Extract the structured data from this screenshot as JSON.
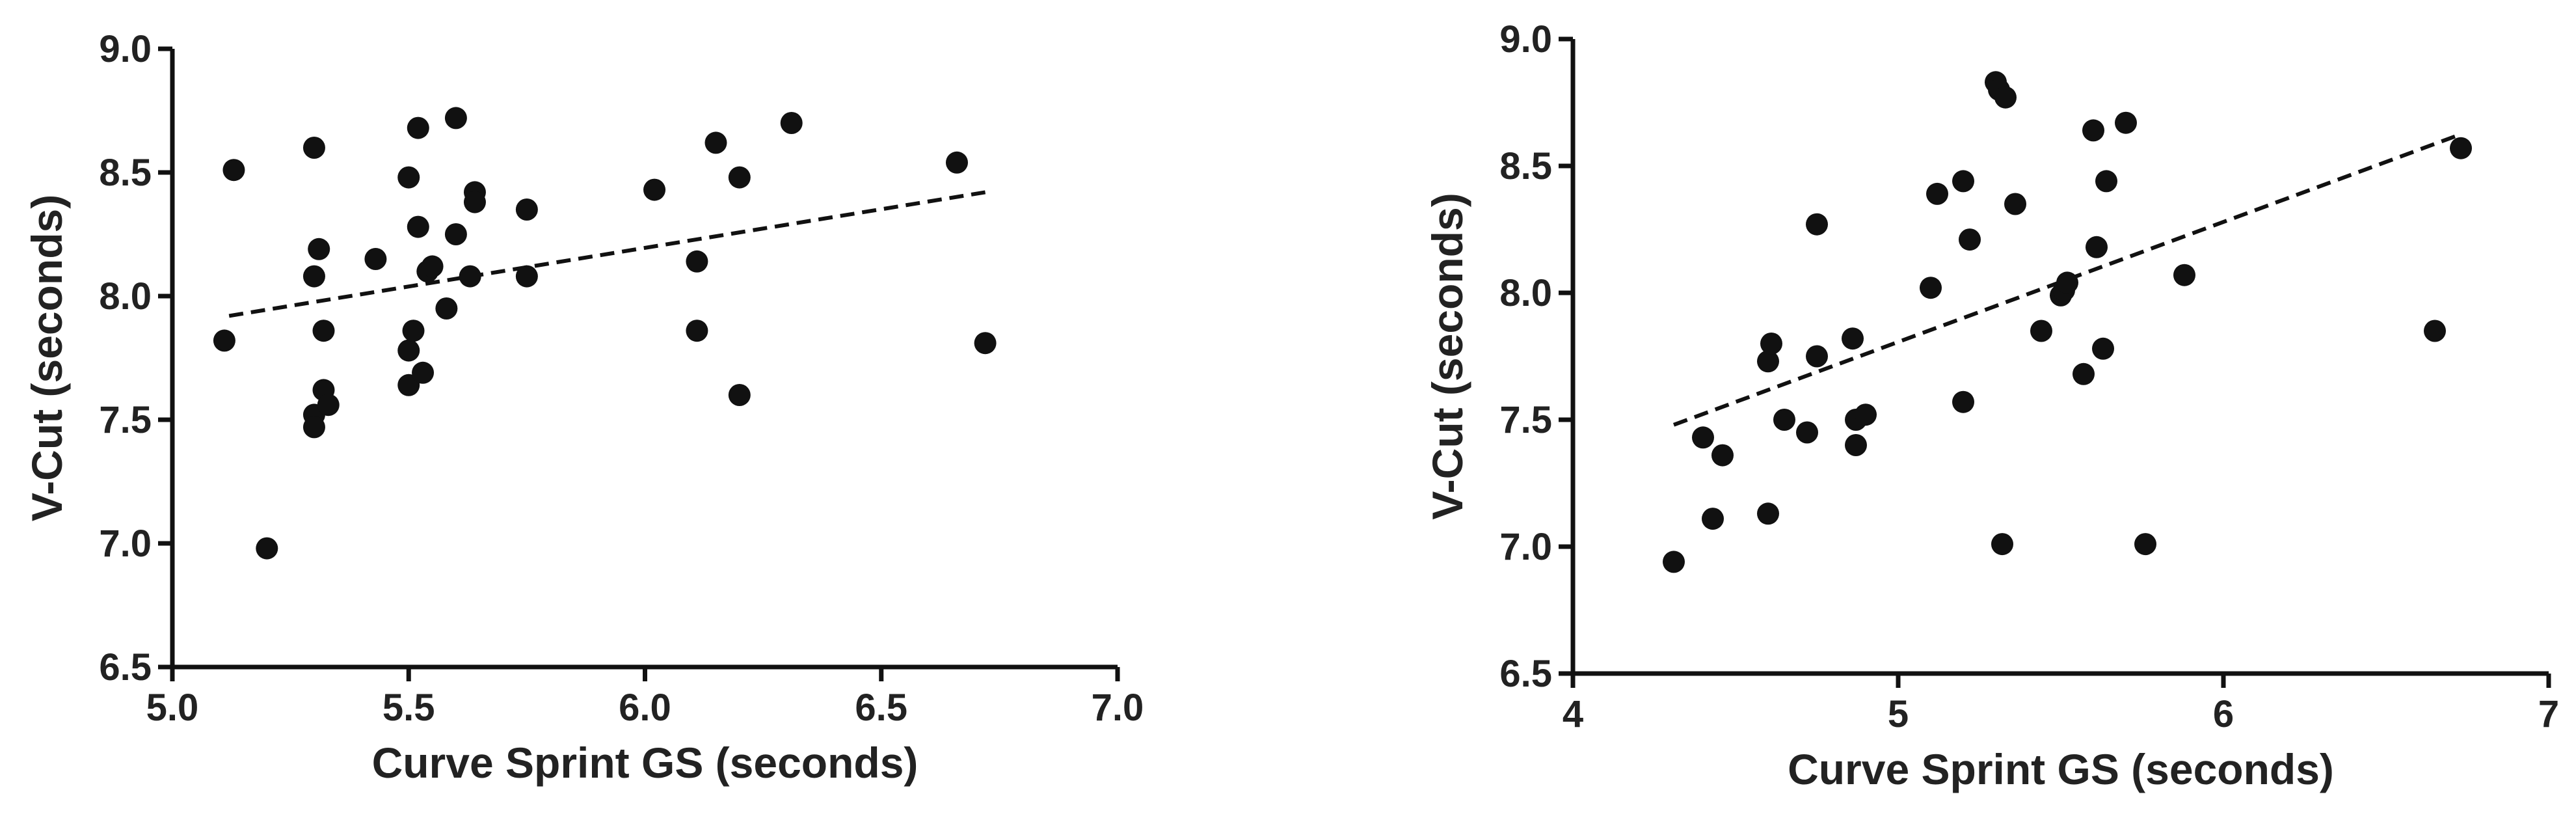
{
  "chart_data": [
    {
      "type": "scatter",
      "xlabel": "Curve Sprint GS (seconds)",
      "ylabel": "V-Cut (seconds)",
      "xlim": [
        5.0,
        7.0
      ],
      "ylim": [
        6.5,
        9.0
      ],
      "xticks": [
        "5.0",
        "5.5",
        "6.0",
        "6.5",
        "7.0"
      ],
      "yticks": [
        "6.5",
        "7.0",
        "7.5",
        "8.0",
        "8.5",
        "9.0"
      ],
      "grid": false,
      "points": [
        {
          "x": 5.11,
          "y": 7.82
        },
        {
          "x": 5.13,
          "y": 8.51
        },
        {
          "x": 5.2,
          "y": 6.98
        },
        {
          "x": 5.3,
          "y": 8.6
        },
        {
          "x": 5.3,
          "y": 8.08
        },
        {
          "x": 5.31,
          "y": 8.19
        },
        {
          "x": 5.3,
          "y": 7.52
        },
        {
          "x": 5.3,
          "y": 7.47
        },
        {
          "x": 5.32,
          "y": 7.86
        },
        {
          "x": 5.32,
          "y": 7.62
        },
        {
          "x": 5.33,
          "y": 7.56
        },
        {
          "x": 5.43,
          "y": 8.15
        },
        {
          "x": 5.5,
          "y": 8.48
        },
        {
          "x": 5.5,
          "y": 7.78
        },
        {
          "x": 5.5,
          "y": 7.64
        },
        {
          "x": 5.51,
          "y": 7.86
        },
        {
          "x": 5.52,
          "y": 8.68
        },
        {
          "x": 5.52,
          "y": 8.28
        },
        {
          "x": 5.54,
          "y": 8.1
        },
        {
          "x": 5.53,
          "y": 7.69
        },
        {
          "x": 5.55,
          "y": 8.12
        },
        {
          "x": 5.58,
          "y": 7.95
        },
        {
          "x": 5.6,
          "y": 8.72
        },
        {
          "x": 5.6,
          "y": 8.25
        },
        {
          "x": 5.63,
          "y": 8.08
        },
        {
          "x": 5.64,
          "y": 8.42
        },
        {
          "x": 5.64,
          "y": 8.38
        },
        {
          "x": 5.75,
          "y": 8.35
        },
        {
          "x": 5.75,
          "y": 8.08
        },
        {
          "x": 6.02,
          "y": 8.43
        },
        {
          "x": 6.11,
          "y": 8.14
        },
        {
          "x": 6.11,
          "y": 7.86
        },
        {
          "x": 6.15,
          "y": 8.62
        },
        {
          "x": 6.2,
          "y": 8.48
        },
        {
          "x": 6.2,
          "y": 7.6
        },
        {
          "x": 6.31,
          "y": 8.7
        },
        {
          "x": 6.66,
          "y": 8.54
        },
        {
          "x": 6.72,
          "y": 7.81
        }
      ],
      "trendline": {
        "x": [
          5.12,
          6.72
        ],
        "y": [
          7.92,
          8.42
        ],
        "style": "dashed"
      }
    },
    {
      "type": "scatter",
      "xlabel": "Curve Sprint GS (seconds)",
      "ylabel": "V-Cut (seconds)",
      "xlim": [
        4,
        7
      ],
      "ylim": [
        6.5,
        9.0
      ],
      "xticks": [
        "4",
        "5",
        "6",
        "7"
      ],
      "yticks": [
        "6.5",
        "7.0",
        "7.5",
        "8.0",
        "8.5",
        "9.0"
      ],
      "grid": false,
      "points": [
        {
          "x": 4.31,
          "y": 6.94
        },
        {
          "x": 4.4,
          "y": 7.43
        },
        {
          "x": 4.43,
          "y": 7.11
        },
        {
          "x": 4.46,
          "y": 7.36
        },
        {
          "x": 4.6,
          "y": 7.13
        },
        {
          "x": 4.6,
          "y": 7.73
        },
        {
          "x": 4.61,
          "y": 7.8
        },
        {
          "x": 4.65,
          "y": 7.5
        },
        {
          "x": 4.72,
          "y": 7.45
        },
        {
          "x": 4.75,
          "y": 8.27
        },
        {
          "x": 4.75,
          "y": 7.75
        },
        {
          "x": 4.86,
          "y": 7.82
        },
        {
          "x": 4.87,
          "y": 7.4
        },
        {
          "x": 4.87,
          "y": 7.5
        },
        {
          "x": 4.9,
          "y": 7.52
        },
        {
          "x": 5.1,
          "y": 8.02
        },
        {
          "x": 5.12,
          "y": 8.39
        },
        {
          "x": 5.2,
          "y": 8.44
        },
        {
          "x": 5.2,
          "y": 7.57
        },
        {
          "x": 5.22,
          "y": 8.21
        },
        {
          "x": 5.3,
          "y": 8.83
        },
        {
          "x": 5.31,
          "y": 8.8
        },
        {
          "x": 5.33,
          "y": 8.77
        },
        {
          "x": 5.32,
          "y": 7.01
        },
        {
          "x": 5.36,
          "y": 8.35
        },
        {
          "x": 5.44,
          "y": 7.85
        },
        {
          "x": 5.5,
          "y": 7.99
        },
        {
          "x": 5.51,
          "y": 8.01
        },
        {
          "x": 5.52,
          "y": 8.04
        },
        {
          "x": 5.57,
          "y": 7.68
        },
        {
          "x": 5.6,
          "y": 8.64
        },
        {
          "x": 5.61,
          "y": 8.18
        },
        {
          "x": 5.63,
          "y": 7.78
        },
        {
          "x": 5.64,
          "y": 8.44
        },
        {
          "x": 5.7,
          "y": 8.67
        },
        {
          "x": 5.76,
          "y": 7.01
        },
        {
          "x": 5.88,
          "y": 8.07
        },
        {
          "x": 6.65,
          "y": 7.85
        },
        {
          "x": 6.73,
          "y": 8.57
        }
      ],
      "trendline": {
        "x": [
          4.31,
          6.72
        ],
        "y": [
          7.48,
          8.62
        ],
        "style": "dashed"
      }
    }
  ]
}
